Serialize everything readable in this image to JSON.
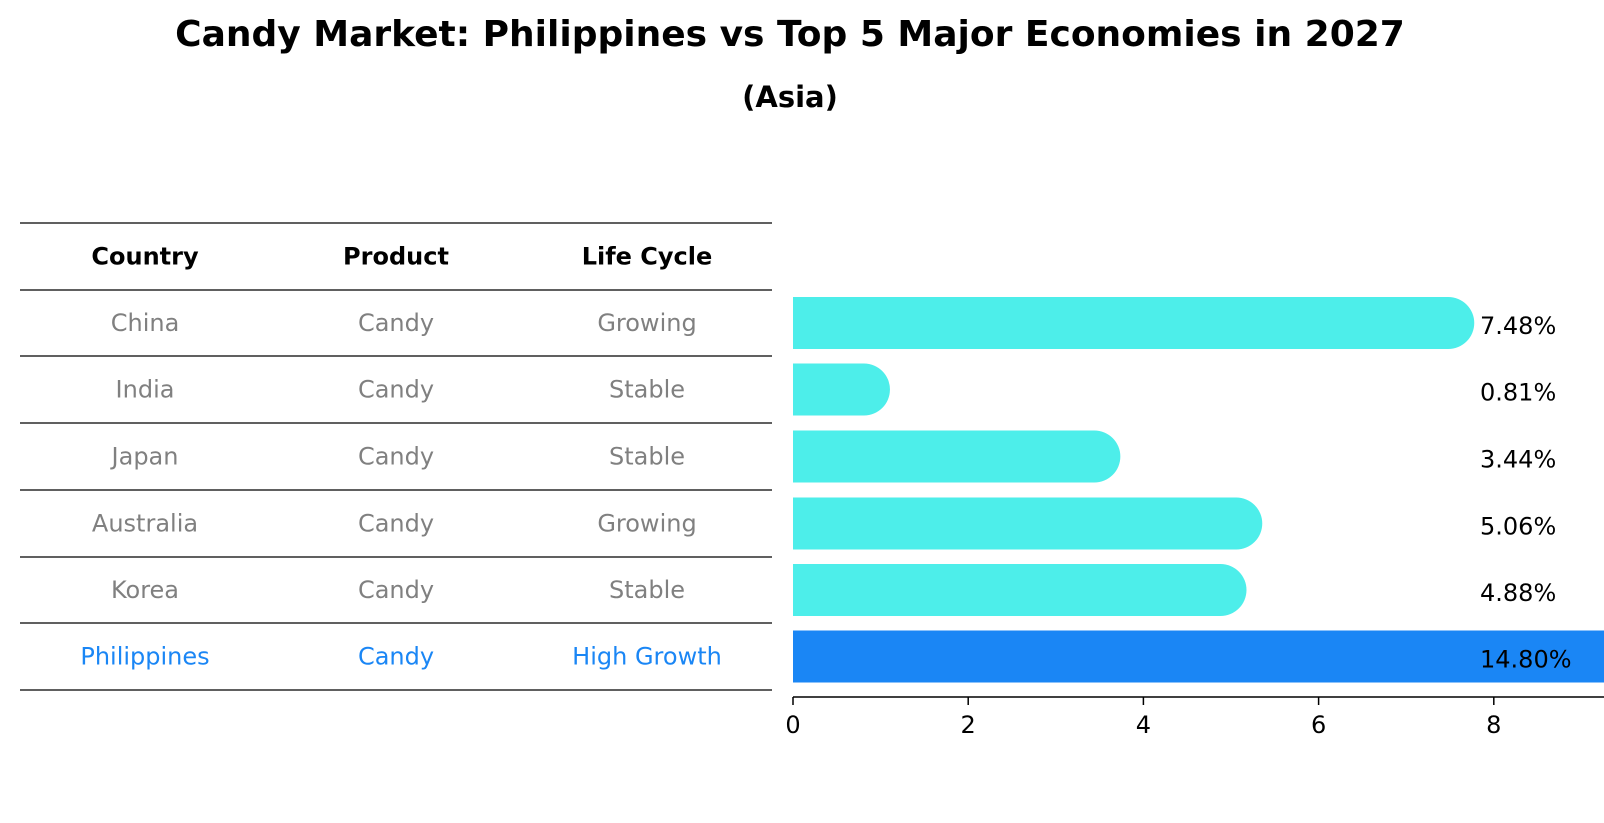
{
  "title": "Candy Market: Philippines vs Top 5 Major Economies in 2027",
  "subtitle": "(Asia)",
  "colors": {
    "normal_bar": "#4deeea",
    "highlight_bar": "#1a86f5",
    "normal_text": "#808080",
    "highlight_text": "#1a86f5"
  },
  "table": {
    "headers": [
      "Country",
      "Product",
      "Life Cycle"
    ],
    "rows": [
      {
        "country": "China",
        "product": "Candy",
        "life_cycle": "Growing",
        "highlight": false
      },
      {
        "country": "India",
        "product": "Candy",
        "life_cycle": "Stable",
        "highlight": false
      },
      {
        "country": "Japan",
        "product": "Candy",
        "life_cycle": "Stable",
        "highlight": false
      },
      {
        "country": "Australia",
        "product": "Candy",
        "life_cycle": "Growing",
        "highlight": false
      },
      {
        "country": "Korea",
        "product": "Candy",
        "life_cycle": "Stable",
        "highlight": false
      },
      {
        "country": "Philippines",
        "product": "Candy",
        "life_cycle": "High Growth",
        "highlight": true
      }
    ]
  },
  "chart_data": {
    "type": "bar",
    "orientation": "horizontal",
    "categories": [
      "China",
      "India",
      "Japan",
      "Australia",
      "Korea",
      "Philippines"
    ],
    "values": [
      7.48,
      0.81,
      3.44,
      5.06,
      4.88,
      14.8
    ],
    "value_labels": [
      "7.48%",
      "0.81%",
      "3.44%",
      "5.06%",
      "4.88%",
      "14.80%"
    ],
    "highlight": "Philippines",
    "xlim": [
      0,
      15.5
    ],
    "xticks": [
      0,
      2,
      4,
      6,
      8,
      10,
      12,
      14
    ],
    "xlabel": "",
    "ylabel": "",
    "grid": false
  }
}
